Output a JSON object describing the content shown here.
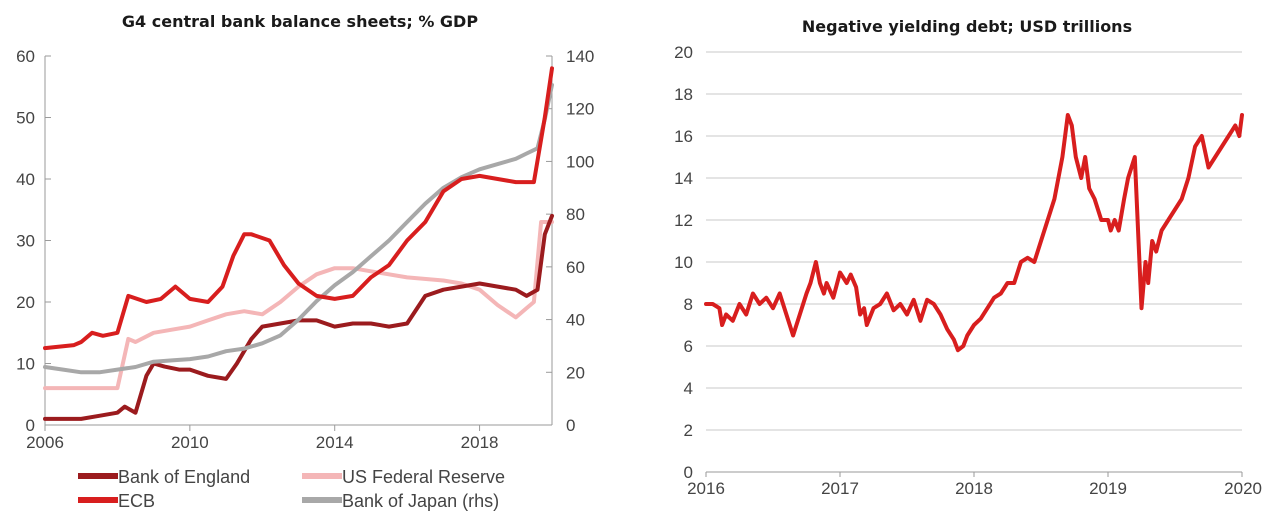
{
  "chart_data": [
    {
      "type": "line",
      "title": "G4 central bank balance sheets; % GDP",
      "xlim": [
        2006,
        2020
      ],
      "ylim": [
        0,
        60
      ],
      "y2lim": [
        0,
        140
      ],
      "x_ticks": [
        "2006",
        "2010",
        "2014",
        "2018"
      ],
      "x_tick_values": [
        2006,
        2010,
        2014,
        2018
      ],
      "y_ticks": [
        "0",
        "10",
        "20",
        "30",
        "40",
        "50",
        "60"
      ],
      "y_tick_values": [
        0,
        10,
        20,
        30,
        40,
        50,
        60
      ],
      "y2_ticks": [
        "0",
        "20",
        "40",
        "60",
        "80",
        "100",
        "120",
        "140"
      ],
      "y2_tick_values": [
        0,
        20,
        40,
        60,
        80,
        100,
        120,
        140
      ],
      "legend_position": "bottom",
      "series": [
        {
          "name": "Bank of England",
          "color": "#9b1b1e",
          "axis": "left",
          "x": [
            2006,
            2007,
            2007.5,
            2008,
            2008.2,
            2008.5,
            2008.8,
            2009,
            2009.3,
            2009.7,
            2010,
            2010.5,
            2011,
            2011.3,
            2011.7,
            2012,
            2012.5,
            2013,
            2013.5,
            2014,
            2014.5,
            2015,
            2015.5,
            2016,
            2016.5,
            2017,
            2017.5,
            2018,
            2018.5,
            2019,
            2019.3,
            2019.6,
            2019.8,
            2020
          ],
          "y": [
            1,
            1,
            1.5,
            2,
            3,
            2,
            8,
            10,
            9.5,
            9,
            9,
            8,
            7.5,
            10,
            14,
            16,
            16.5,
            17,
            17,
            16,
            16.5,
            16.5,
            16,
            16.5,
            21,
            22,
            22.5,
            23,
            22.5,
            22,
            21,
            22,
            31,
            34
          ]
        },
        {
          "name": "ECB",
          "color": "#d81e1e",
          "axis": "left",
          "x": [
            2006,
            2006.8,
            2007,
            2007.3,
            2007.6,
            2008,
            2008.3,
            2008.8,
            2009.2,
            2009.6,
            2010,
            2010.5,
            2010.9,
            2011.2,
            2011.5,
            2011.7,
            2012.2,
            2012.6,
            2013,
            2013.5,
            2014,
            2014.5,
            2015,
            2015.5,
            2016,
            2016.5,
            2017,
            2017.5,
            2018,
            2018.5,
            2019,
            2019.5,
            2019.8,
            2020
          ],
          "y": [
            12.5,
            13,
            13.5,
            15,
            14.5,
            15,
            21,
            20,
            20.5,
            22.5,
            20.5,
            20,
            22.5,
            27.5,
            31,
            31,
            30,
            26,
            23,
            21,
            20.5,
            21,
            24,
            26,
            30,
            33,
            38,
            40,
            40.5,
            40,
            39.5,
            39.5,
            50,
            58
          ]
        },
        {
          "name": "US Federal Reserve",
          "color": "#f4b6b7",
          "axis": "left",
          "x": [
            2006,
            2006.5,
            2007,
            2007.5,
            2008,
            2008.3,
            2008.5,
            2009,
            2009.5,
            2010,
            2010.5,
            2011,
            2011.5,
            2012,
            2012.5,
            2013,
            2013.5,
            2014,
            2014.5,
            2015,
            2016,
            2017,
            2017.5,
            2018,
            2018.5,
            2019,
            2019.3,
            2019.5,
            2019.7,
            2020
          ],
          "y": [
            6,
            6,
            6,
            6,
            6,
            14,
            13.5,
            15,
            15.5,
            16,
            17,
            18,
            18.5,
            18,
            20,
            22.5,
            24.5,
            25.5,
            25.5,
            25,
            24,
            23.5,
            23,
            22,
            19.5,
            17.5,
            19,
            20,
            33,
            33
          ]
        },
        {
          "name": "Bank of Japan (rhs)",
          "color": "#a8a8a8",
          "axis": "right",
          "x": [
            2006,
            2006.5,
            2007,
            2007.5,
            2008,
            2008.5,
            2009,
            2009.5,
            2010,
            2010.5,
            2011,
            2011.5,
            2012,
            2012.5,
            2013,
            2013.5,
            2014,
            2014.5,
            2015,
            2015.5,
            2016,
            2016.5,
            2017,
            2017.5,
            2018,
            2018.5,
            2019,
            2019.3,
            2019.6,
            2019.8,
            2020
          ],
          "y": [
            22,
            21,
            20,
            20,
            21,
            22,
            24,
            24.5,
            25,
            26,
            28,
            29,
            31,
            34,
            40,
            47,
            53,
            58,
            64,
            70,
            77,
            84,
            90,
            94,
            97,
            99,
            101,
            103,
            105,
            116,
            129
          ]
        }
      ]
    },
    {
      "type": "line",
      "title": "Negative yielding debt; USD trillions",
      "xlim": [
        2016,
        2020
      ],
      "ylim": [
        0,
        20
      ],
      "x_ticks": [
        "2016",
        "2017",
        "2018",
        "2019",
        "2020"
      ],
      "x_tick_values": [
        2016,
        2017,
        2018,
        2019,
        2020
      ],
      "y_ticks": [
        "0",
        "2",
        "4",
        "6",
        "8",
        "10",
        "12",
        "14",
        "16",
        "18",
        "20"
      ],
      "y_tick_values": [
        0,
        2,
        4,
        6,
        8,
        10,
        12,
        14,
        16,
        18,
        20
      ],
      "grid": true,
      "series": [
        {
          "color": "#d81e1e",
          "x": [
            2016,
            2016.05,
            2016.1,
            2016.12,
            2016.15,
            2016.2,
            2016.25,
            2016.3,
            2016.35,
            2016.4,
            2016.45,
            2016.5,
            2016.55,
            2016.6,
            2016.65,
            2016.7,
            2016.75,
            2016.78,
            2016.82,
            2016.85,
            2016.88,
            2016.9,
            2016.95,
            2017,
            2017.05,
            2017.08,
            2017.12,
            2017.15,
            2017.18,
            2017.2,
            2017.25,
            2017.3,
            2017.35,
            2017.4,
            2017.45,
            2017.5,
            2017.55,
            2017.6,
            2017.65,
            2017.7,
            2017.75,
            2017.8,
            2017.85,
            2017.88,
            2017.92,
            2017.95,
            2018,
            2018.05,
            2018.1,
            2018.15,
            2018.2,
            2018.25,
            2018.3,
            2018.35,
            2018.4,
            2018.45,
            2018.5,
            2018.55,
            2018.6,
            2018.63,
            2018.66,
            2018.7,
            2018.73,
            2018.76,
            2018.8,
            2018.83,
            2018.86,
            2018.9,
            2018.95,
            2019,
            2019.02,
            2019.05,
            2019.08,
            2019.12,
            2019.15,
            2019.2,
            2019.25,
            2019.28,
            2019.3,
            2019.33,
            2019.36,
            2019.4,
            2019.45,
            2019.5,
            2019.55,
            2019.6,
            2019.65,
            2019.7,
            2019.75,
            2019.8,
            2019.85,
            2019.9,
            2019.95,
            2019.98,
            2020
          ],
          "y": [
            8,
            8,
            7.8,
            7,
            7.5,
            7.2,
            8,
            7.5,
            8.5,
            8,
            8.3,
            7.8,
            8.5,
            7.5,
            6.5,
            7.5,
            8.5,
            9,
            10,
            9,
            8.5,
            9,
            8.3,
            9.5,
            9,
            9.4,
            8.8,
            7.5,
            7.8,
            7,
            7.8,
            8,
            8.5,
            7.7,
            8,
            7.5,
            8.2,
            7.2,
            8.2,
            8,
            7.5,
            6.8,
            6.3,
            5.8,
            6,
            6.5,
            7,
            7.3,
            7.8,
            8.3,
            8.5,
            9,
            9,
            10,
            10.2,
            10,
            11,
            12,
            13,
            14,
            15,
            17,
            16.5,
            15,
            14,
            15,
            13.5,
            13,
            12,
            12,
            11.5,
            12,
            11.5,
            13,
            14,
            15,
            7.8,
            10,
            9,
            11,
            10.5,
            11.5,
            12,
            12.5,
            13,
            14,
            15.5,
            16,
            14.5,
            15,
            15.5,
            16,
            16.5,
            16,
            17
          ]
        }
      ]
    }
  ]
}
